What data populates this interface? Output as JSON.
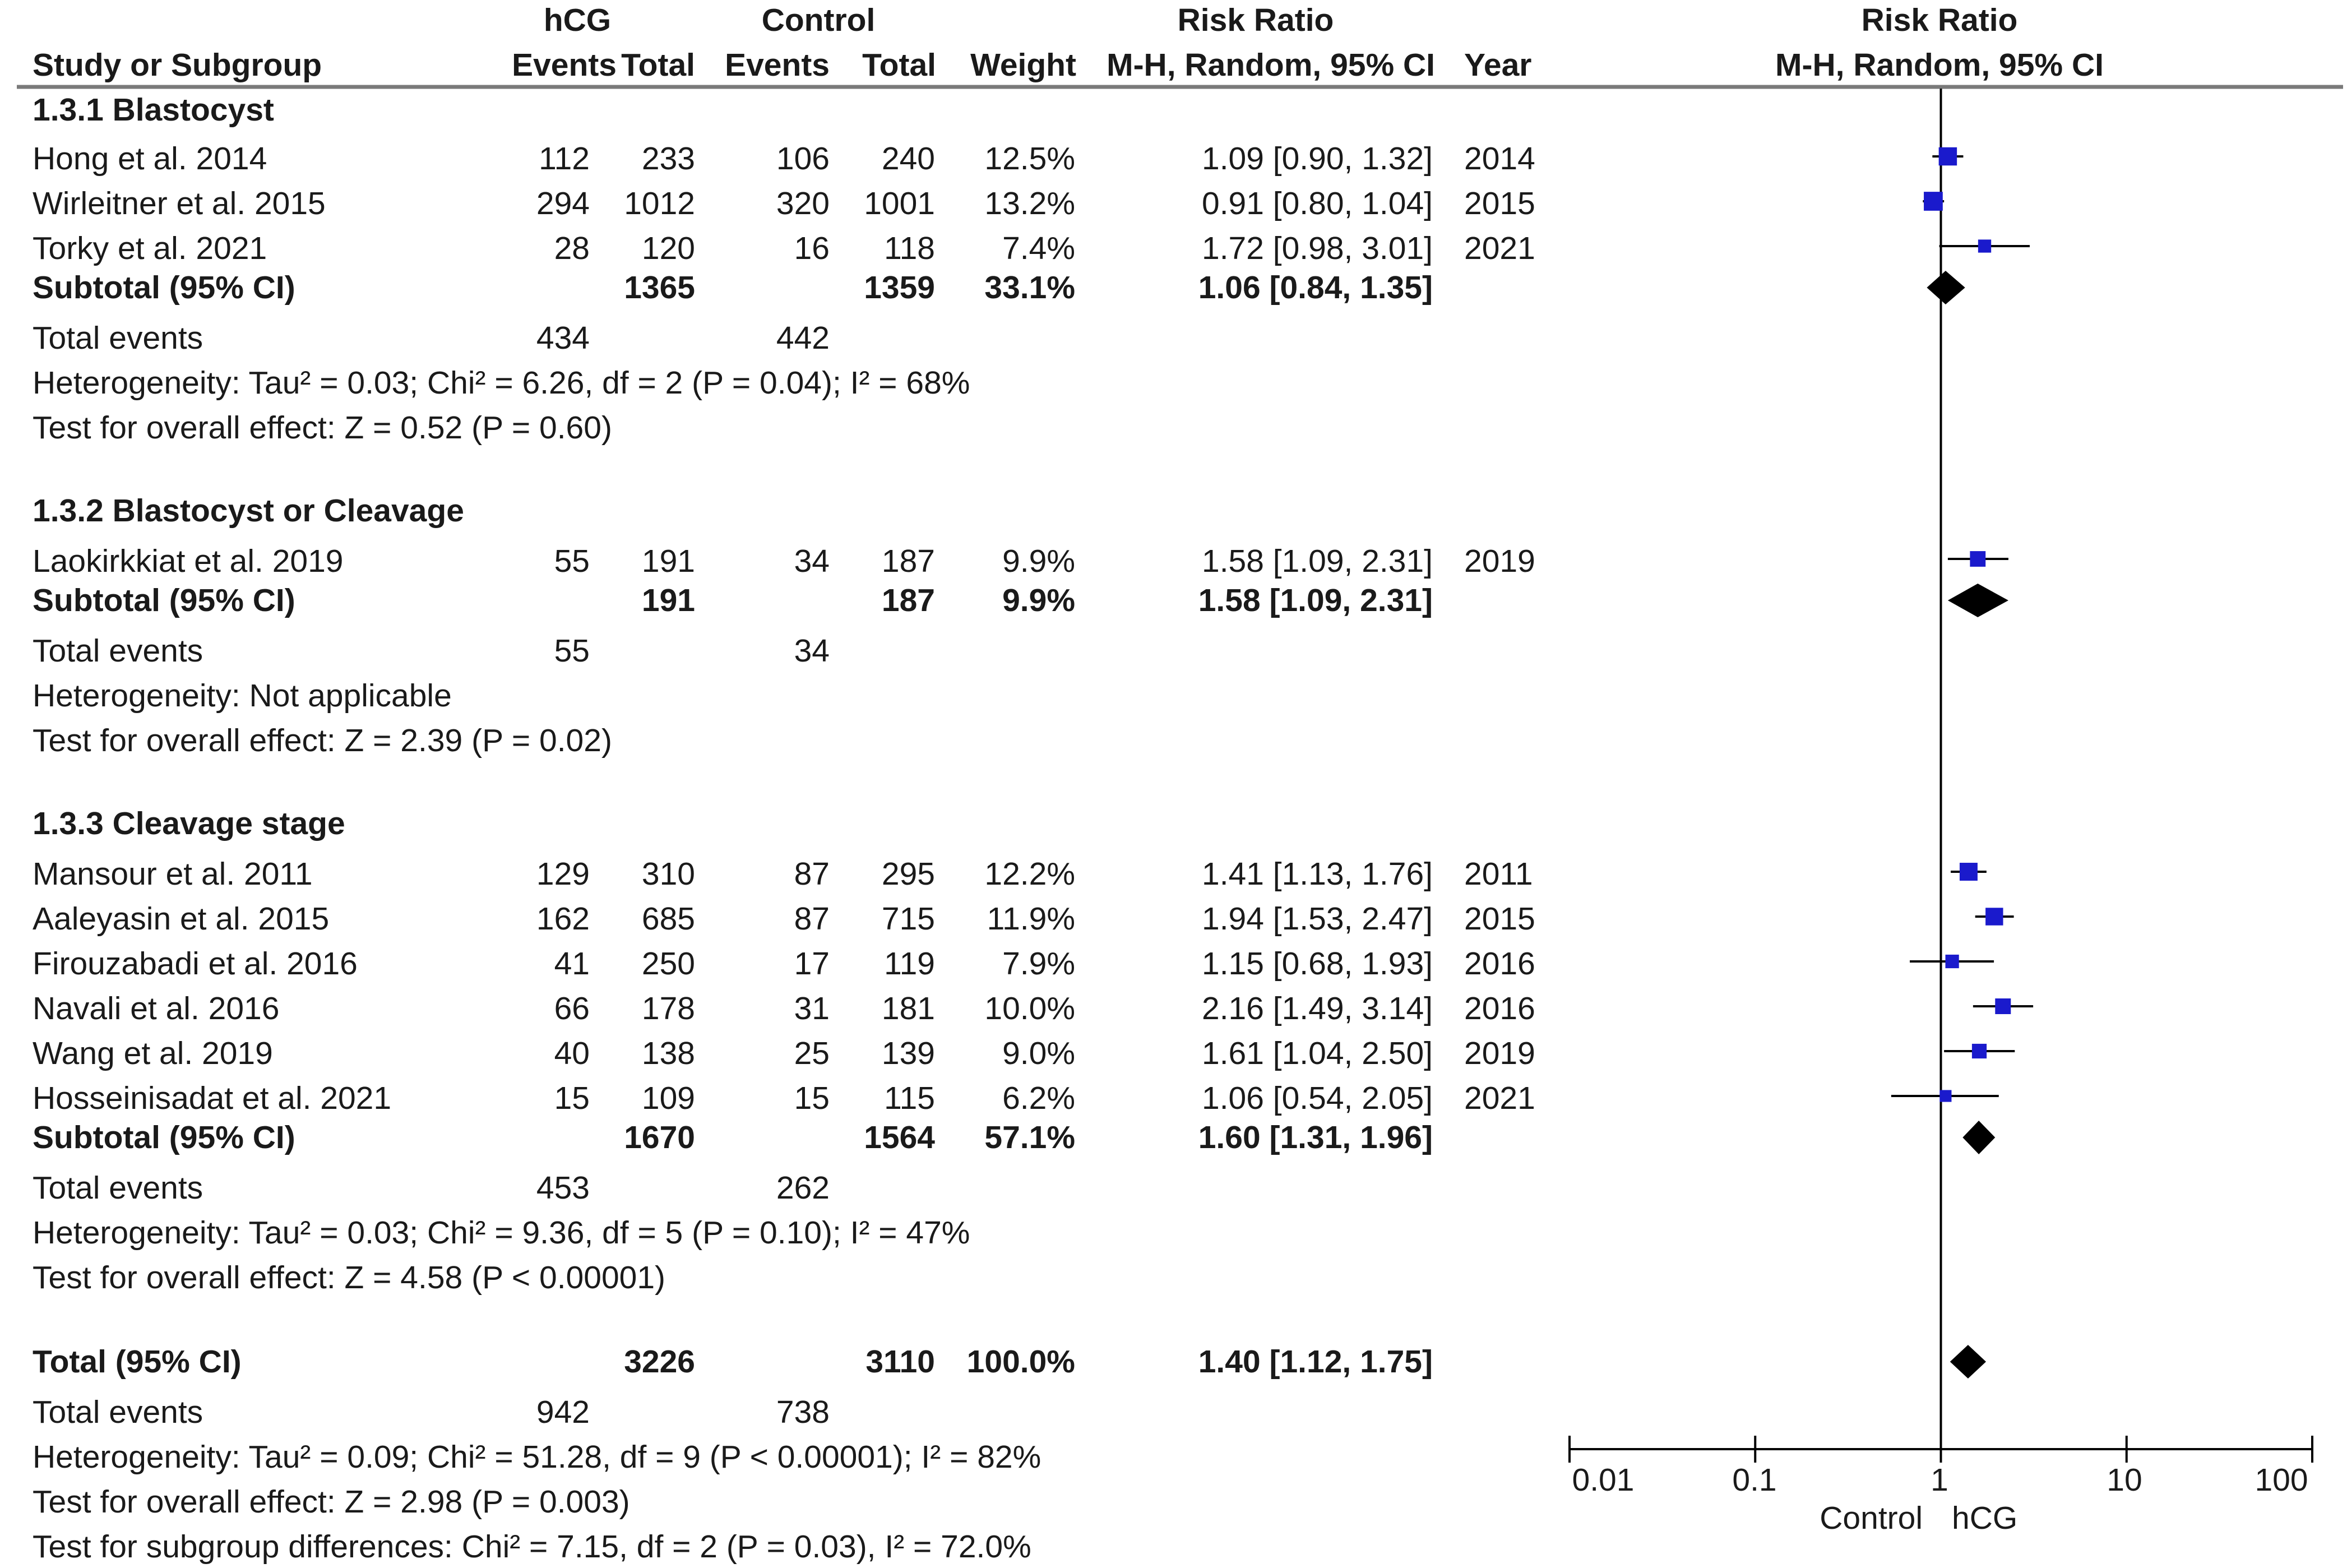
{
  "header": {
    "group_hcg": "hCG",
    "group_control": "Control",
    "rr_group": "Risk Ratio",
    "plot_group": "Risk Ratio",
    "col_study": "Study or Subgroup",
    "col_hcg_events": "Events",
    "col_hcg_total": "Total",
    "col_ctrl_events": "Events",
    "col_ctrl_total": "Total",
    "col_weight": "Weight",
    "col_rr": "M-H, Random, 95% CI",
    "col_year": "Year",
    "plot_method": "M-H, Random, 95% CI"
  },
  "rows": [
    {
      "kind": "heading",
      "label": "1.3.1 Blastocyst"
    },
    {
      "kind": "study",
      "label": "Hong et al. 2014",
      "hcg_events": "112",
      "hcg_total": "233",
      "ctrl_events": "106",
      "ctrl_total": "240",
      "weight": "12.5%",
      "rr_text": "1.09 [0.90, 1.32]",
      "year": "2014"
    },
    {
      "kind": "study",
      "label": "Wirleitner et al. 2015",
      "hcg_events": "294",
      "hcg_total": "1012",
      "ctrl_events": "320",
      "ctrl_total": "1001",
      "weight": "13.2%",
      "rr_text": "0.91 [0.80, 1.04]",
      "year": "2015"
    },
    {
      "kind": "study",
      "label": "Torky et al. 2021",
      "hcg_events": "28",
      "hcg_total": "120",
      "ctrl_events": "16",
      "ctrl_total": "118",
      "weight": "7.4%",
      "rr_text": "1.72 [0.98, 3.01]",
      "year": "2021"
    },
    {
      "kind": "subtotal",
      "label": "Subtotal (95% CI)",
      "hcg_total": "1365",
      "ctrl_total": "1359",
      "weight": "33.1%",
      "rr_text": "1.06 [0.84, 1.35]"
    },
    {
      "kind": "events",
      "label": "Total events",
      "hcg_events": "434",
      "ctrl_events": "442"
    },
    {
      "kind": "note",
      "label": "Heterogeneity: Tau² = 0.03; Chi² = 6.26, df = 2 (P = 0.04); I² = 68%"
    },
    {
      "kind": "note",
      "label": "Test for overall effect: Z = 0.52 (P = 0.60)"
    },
    {
      "kind": "heading",
      "label": "1.3.2 Blastocyst or Cleavage"
    },
    {
      "kind": "study",
      "label": "Laokirkkiat et al. 2019",
      "hcg_events": "55",
      "hcg_total": "191",
      "ctrl_events": "34",
      "ctrl_total": "187",
      "weight": "9.9%",
      "rr_text": "1.58 [1.09, 2.31]",
      "year": "2019"
    },
    {
      "kind": "subtotal",
      "label": "Subtotal (95% CI)",
      "hcg_total": "191",
      "ctrl_total": "187",
      "weight": "9.9%",
      "rr_text": "1.58 [1.09, 2.31]"
    },
    {
      "kind": "events",
      "label": "Total events",
      "hcg_events": "55",
      "ctrl_events": "34"
    },
    {
      "kind": "note",
      "label": "Heterogeneity: Not applicable"
    },
    {
      "kind": "note",
      "label": "Test for overall effect: Z = 2.39 (P = 0.02)"
    },
    {
      "kind": "heading",
      "label": "1.3.3 Cleavage stage"
    },
    {
      "kind": "study",
      "label": "Mansour et al. 2011",
      "hcg_events": "129",
      "hcg_total": "310",
      "ctrl_events": "87",
      "ctrl_total": "295",
      "weight": "12.2%",
      "rr_text": "1.41 [1.13, 1.76]",
      "year": "2011"
    },
    {
      "kind": "study",
      "label": "Aaleyasin et al. 2015",
      "hcg_events": "162",
      "hcg_total": "685",
      "ctrl_events": "87",
      "ctrl_total": "715",
      "weight": "11.9%",
      "rr_text": "1.94 [1.53, 2.47]",
      "year": "2015"
    },
    {
      "kind": "study",
      "label": "Firouzabadi et al. 2016",
      "hcg_events": "41",
      "hcg_total": "250",
      "ctrl_events": "17",
      "ctrl_total": "119",
      "weight": "7.9%",
      "rr_text": "1.15 [0.68, 1.93]",
      "year": "2016"
    },
    {
      "kind": "study",
      "label": "Navali et al. 2016",
      "hcg_events": "66",
      "hcg_total": "178",
      "ctrl_events": "31",
      "ctrl_total": "181",
      "weight": "10.0%",
      "rr_text": "2.16 [1.49, 3.14]",
      "year": "2016"
    },
    {
      "kind": "study",
      "label": "Wang et al. 2019",
      "hcg_events": "40",
      "hcg_total": "138",
      "ctrl_events": "25",
      "ctrl_total": "139",
      "weight": "9.0%",
      "rr_text": "1.61 [1.04, 2.50]",
      "year": "2019"
    },
    {
      "kind": "study",
      "label": "Hosseinisadat et al. 2021",
      "hcg_events": "15",
      "hcg_total": "109",
      "ctrl_events": "15",
      "ctrl_total": "115",
      "weight": "6.2%",
      "rr_text": "1.06 [0.54, 2.05]",
      "year": "2021"
    },
    {
      "kind": "subtotal",
      "label": "Subtotal (95% CI)",
      "hcg_total": "1670",
      "ctrl_total": "1564",
      "weight": "57.1%",
      "rr_text": "1.60 [1.31, 1.96]"
    },
    {
      "kind": "events",
      "label": "Total events",
      "hcg_events": "453",
      "ctrl_events": "262"
    },
    {
      "kind": "note",
      "label": "Heterogeneity: Tau² = 0.03; Chi² = 9.36, df = 5 (P = 0.10); I² = 47%"
    },
    {
      "kind": "note",
      "label": "Test for overall effect: Z = 4.58 (P < 0.00001)"
    },
    {
      "kind": "subtotal",
      "label": "Total (95% CI)",
      "hcg_total": "3226",
      "ctrl_total": "3110",
      "weight": "100.0%",
      "rr_text": "1.40 [1.12, 1.75]"
    },
    {
      "kind": "events",
      "label": "Total events",
      "hcg_events": "942",
      "ctrl_events": "738"
    },
    {
      "kind": "note",
      "label": "Heterogeneity: Tau² = 0.09; Chi² = 51.28, df = 9 (P < 0.00001); I² = 82%"
    },
    {
      "kind": "note",
      "label": "Test for overall effect: Z = 2.98 (P = 0.003)"
    },
    {
      "kind": "note",
      "label": "Test for subgroup differences: Chi² = 7.15, df = 2 (P = 0.03), I² = 72.0%"
    }
  ],
  "axis": {
    "ticks": [
      "0.01",
      "0.1",
      "1",
      "10",
      "100"
    ],
    "favours_left": "Control",
    "favours_right": "hCG"
  },
  "colors": {
    "study_marker": "#1a1acc",
    "diamond": "#000000",
    "line": "#000000",
    "text": "#1a1a1a"
  },
  "chart_data": {
    "type": "forest",
    "xscale": "log",
    "xlim": [
      0.01,
      100
    ],
    "reference_line": 1,
    "xticks": [
      0.01,
      0.1,
      1,
      10,
      100
    ],
    "studies": [
      {
        "name": "Hong et al. 2014",
        "subgroup": "1.3.1 Blastocyst",
        "rr": 1.09,
        "lo": 0.9,
        "hi": 1.32,
        "weight": 12.5
      },
      {
        "name": "Wirleitner et al. 2015",
        "subgroup": "1.3.1 Blastocyst",
        "rr": 0.91,
        "lo": 0.8,
        "hi": 1.04,
        "weight": 13.2
      },
      {
        "name": "Torky et al. 2021",
        "subgroup": "1.3.1 Blastocyst",
        "rr": 1.72,
        "lo": 0.98,
        "hi": 3.01,
        "weight": 7.4
      },
      {
        "name": "Laokirkkiat et al. 2019",
        "subgroup": "1.3.2 Blastocyst or Cleavage",
        "rr": 1.58,
        "lo": 1.09,
        "hi": 2.31,
        "weight": 9.9
      },
      {
        "name": "Mansour et al. 2011",
        "subgroup": "1.3.3 Cleavage stage",
        "rr": 1.41,
        "lo": 1.13,
        "hi": 1.76,
        "weight": 12.2
      },
      {
        "name": "Aaleyasin et al. 2015",
        "subgroup": "1.3.3 Cleavage stage",
        "rr": 1.94,
        "lo": 1.53,
        "hi": 2.47,
        "weight": 11.9
      },
      {
        "name": "Firouzabadi et al. 2016",
        "subgroup": "1.3.3 Cleavage stage",
        "rr": 1.15,
        "lo": 0.68,
        "hi": 1.93,
        "weight": 7.9
      },
      {
        "name": "Navali et al. 2016",
        "subgroup": "1.3.3 Cleavage stage",
        "rr": 2.16,
        "lo": 1.49,
        "hi": 3.14,
        "weight": 10.0
      },
      {
        "name": "Wang et al. 2019",
        "subgroup": "1.3.3 Cleavage stage",
        "rr": 1.61,
        "lo": 1.04,
        "hi": 2.5,
        "weight": 9.0
      },
      {
        "name": "Hosseinisadat et al. 2021",
        "subgroup": "1.3.3 Cleavage stage",
        "rr": 1.06,
        "lo": 0.54,
        "hi": 2.05,
        "weight": 6.2
      }
    ],
    "pooled": [
      {
        "name": "Subtotal (95% CI)",
        "subgroup": "1.3.1 Blastocyst",
        "rr": 1.06,
        "lo": 0.84,
        "hi": 1.35,
        "weight": 33.1
      },
      {
        "name": "Subtotal (95% CI)",
        "subgroup": "1.3.2 Blastocyst or Cleavage",
        "rr": 1.58,
        "lo": 1.09,
        "hi": 2.31,
        "weight": 9.9
      },
      {
        "name": "Subtotal (95% CI)",
        "subgroup": "1.3.3 Cleavage stage",
        "rr": 1.6,
        "lo": 1.31,
        "hi": 1.96,
        "weight": 57.1
      },
      {
        "name": "Total (95% CI)",
        "subgroup": "overall",
        "rr": 1.4,
        "lo": 1.12,
        "hi": 1.75,
        "weight": 100.0
      }
    ]
  }
}
